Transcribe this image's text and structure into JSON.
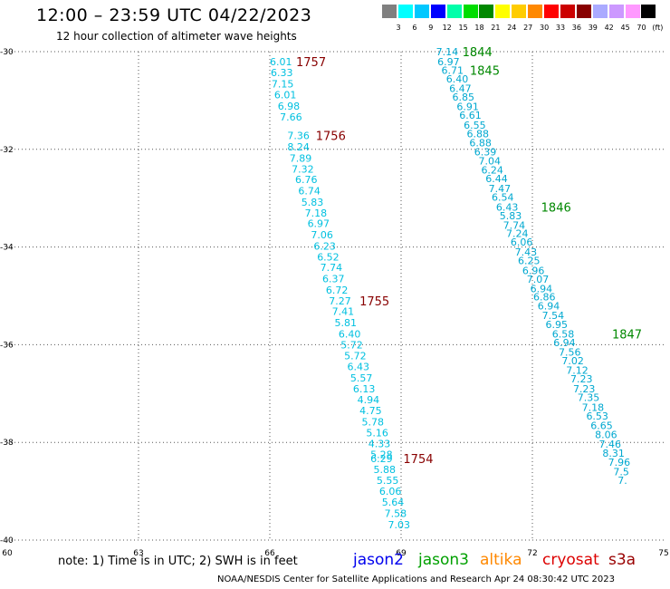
{
  "title": "12:00 – 23:59 UTC 04/22/2023",
  "subtitle": "12 hour collection of altimeter wave heights",
  "colorbar": {
    "colors": [
      "#808080",
      "#00ffff",
      "#00c8ff",
      "#0000ff",
      "#00ffaa",
      "#00dd00",
      "#008800",
      "#ffff00",
      "#ffcc00",
      "#ff8800",
      "#ff0000",
      "#cc0000",
      "#880000",
      "#aaaaff",
      "#cc99ff",
      "#ff99ff",
      "#000000"
    ],
    "labels": [
      "3",
      "6",
      "9",
      "12",
      "15",
      "18",
      "21",
      "24",
      "27",
      "30",
      "33",
      "36",
      "39",
      "42",
      "45",
      "70",
      "(ft)"
    ]
  },
  "note": "note:  1) Time is in UTC; 2) SWH is in feet",
  "legend": [
    {
      "name": "jason2",
      "color": "#0000ee"
    },
    {
      "name": "jason3",
      "color": "#00a000"
    },
    {
      "name": "altika",
      "color": "#ff8800"
    },
    {
      "name": "cryosat",
      "color": "#dd0000"
    },
    {
      "name": "s3a",
      "color": "#990000"
    }
  ],
  "footer": "NOAA/NESDIS Center for Satellite Applications and Research    Apr 24 08:30:42 UTC 2023",
  "chart_data": {
    "type": "scatter",
    "title": "12:00 – 23:59 UTC 04/22/2023",
    "xlim": [
      60,
      75
    ],
    "ylim": [
      -40,
      -30
    ],
    "x_ticks": [
      60,
      63,
      66,
      69,
      72,
      75
    ],
    "x_tick_labels": [
      "60",
      "63",
      "66",
      "69",
      "72",
      "75"
    ],
    "y_ticks": [
      -40,
      -38,
      -36,
      -34,
      -32,
      -30
    ],
    "y_tick_labels": [
      "-40",
      "-38",
      "-36",
      "-34",
      "-32",
      "-30"
    ],
    "grid": true,
    "series": [
      {
        "name": "jason2",
        "color": "#00c0e0",
        "points": [
          {
            "x": 66.0,
            "y": -30.2,
            "v": "6.01"
          },
          {
            "x": 66.02,
            "y": -30.43,
            "v": "6.33"
          },
          {
            "x": 66.04,
            "y": -30.66,
            "v": "7.15"
          },
          {
            "x": 66.1,
            "y": -30.88,
            "v": "6.01"
          },
          {
            "x": 66.18,
            "y": -31.11,
            "v": "6.98"
          },
          {
            "x": 66.23,
            "y": -31.34,
            "v": "7.66"
          },
          {
            "x": 66.4,
            "y": -31.72,
            "v": "7.36"
          },
          {
            "x": 66.4,
            "y": -31.95,
            "v": "8.24"
          },
          {
            "x": 66.45,
            "y": -32.18,
            "v": "7.89"
          },
          {
            "x": 66.5,
            "y": -32.4,
            "v": "7.32"
          },
          {
            "x": 66.58,
            "y": -32.62,
            "v": "6.76"
          },
          {
            "x": 66.65,
            "y": -32.85,
            "v": "6.74"
          },
          {
            "x": 66.72,
            "y": -33.08,
            "v": "5.83"
          },
          {
            "x": 66.8,
            "y": -33.3,
            "v": "7.18"
          },
          {
            "x": 66.86,
            "y": -33.52,
            "v": "6.97"
          },
          {
            "x": 66.94,
            "y": -33.75,
            "v": "7.06"
          },
          {
            "x": 67.0,
            "y": -33.98,
            "v": "6.23"
          },
          {
            "x": 67.08,
            "y": -34.2,
            "v": "6.52"
          },
          {
            "x": 67.15,
            "y": -34.42,
            "v": "7.74"
          },
          {
            "x": 67.2,
            "y": -34.65,
            "v": "6.37"
          },
          {
            "x": 67.28,
            "y": -34.88,
            "v": "6.72"
          },
          {
            "x": 67.35,
            "y": -35.1,
            "v": "7.27"
          },
          {
            "x": 67.42,
            "y": -35.32,
            "v": "7.41"
          },
          {
            "x": 67.48,
            "y": -35.55,
            "v": "5.81"
          },
          {
            "x": 67.57,
            "y": -35.78,
            "v": "6.40"
          },
          {
            "x": 67.62,
            "y": -36.0,
            "v": "5.72"
          },
          {
            "x": 67.7,
            "y": -36.22,
            "v": "5.72"
          },
          {
            "x": 67.77,
            "y": -36.45,
            "v": "6.43"
          },
          {
            "x": 67.84,
            "y": -36.68,
            "v": "5.57"
          },
          {
            "x": 67.9,
            "y": -36.9,
            "v": "6.13"
          },
          {
            "x": 68.0,
            "y": -37.12,
            "v": "4.94"
          },
          {
            "x": 68.05,
            "y": -37.35,
            "v": "4.75"
          },
          {
            "x": 68.1,
            "y": -37.58,
            "v": "5.78"
          },
          {
            "x": 68.2,
            "y": -37.8,
            "v": "5.16"
          },
          {
            "x": 68.25,
            "y": -38.02,
            "v": "4.33"
          },
          {
            "x": 68.3,
            "y": -38.25,
            "v": "5.28"
          },
          {
            "x": 68.3,
            "y": -38.33,
            "v": "6.29"
          },
          {
            "x": 68.37,
            "y": -38.55,
            "v": "5.88"
          },
          {
            "x": 68.44,
            "y": -38.78,
            "v": "5.55"
          },
          {
            "x": 68.5,
            "y": -39.0,
            "v": "6.06"
          },
          {
            "x": 68.56,
            "y": -39.22,
            "v": "5.64"
          },
          {
            "x": 68.62,
            "y": -39.45,
            "v": "7.58"
          },
          {
            "x": 68.7,
            "y": -39.68,
            "v": "7.03"
          }
        ]
      },
      {
        "name": "jason3",
        "color": "#00a8d0",
        "points": [
          {
            "x": 69.8,
            "y": -30.0,
            "v": "7.14"
          },
          {
            "x": 69.83,
            "y": -30.2,
            "v": "6.97"
          },
          {
            "x": 69.92,
            "y": -30.38,
            "v": "6.71"
          },
          {
            "x": 70.03,
            "y": -30.56,
            "v": "6.40"
          },
          {
            "x": 70.1,
            "y": -30.75,
            "v": "6.47"
          },
          {
            "x": 70.17,
            "y": -30.93,
            "v": "6.85"
          },
          {
            "x": 70.27,
            "y": -31.12,
            "v": "6.91"
          },
          {
            "x": 70.33,
            "y": -31.3,
            "v": "6.61"
          },
          {
            "x": 70.43,
            "y": -31.5,
            "v": "6.55"
          },
          {
            "x": 70.5,
            "y": -31.68,
            "v": "6.88"
          },
          {
            "x": 70.56,
            "y": -31.86,
            "v": "6.88"
          },
          {
            "x": 70.67,
            "y": -32.05,
            "v": "6.39"
          },
          {
            "x": 70.77,
            "y": -32.24,
            "v": "7.04"
          },
          {
            "x": 70.83,
            "y": -32.42,
            "v": "6.24"
          },
          {
            "x": 70.93,
            "y": -32.6,
            "v": "6.44"
          },
          {
            "x": 71.0,
            "y": -32.8,
            "v": "7.47"
          },
          {
            "x": 71.07,
            "y": -32.98,
            "v": "6.54"
          },
          {
            "x": 71.17,
            "y": -33.18,
            "v": "6.43"
          },
          {
            "x": 71.25,
            "y": -33.36,
            "v": "5.83"
          },
          {
            "x": 71.33,
            "y": -33.55,
            "v": "7.74"
          },
          {
            "x": 71.4,
            "y": -33.72,
            "v": "7.24"
          },
          {
            "x": 71.5,
            "y": -33.9,
            "v": "6.06"
          },
          {
            "x": 71.6,
            "y": -34.1,
            "v": "7.43"
          },
          {
            "x": 71.67,
            "y": -34.28,
            "v": "6.25"
          },
          {
            "x": 71.77,
            "y": -34.48,
            "v": "6.96"
          },
          {
            "x": 71.87,
            "y": -34.66,
            "v": "7.07"
          },
          {
            "x": 71.95,
            "y": -34.85,
            "v": "6.94"
          },
          {
            "x": 72.02,
            "y": -35.02,
            "v": "6.86"
          },
          {
            "x": 72.12,
            "y": -35.2,
            "v": "6.94"
          },
          {
            "x": 72.22,
            "y": -35.4,
            "v": "7.54"
          },
          {
            "x": 72.3,
            "y": -35.58,
            "v": "6.95"
          },
          {
            "x": 72.45,
            "y": -35.78,
            "v": "6.58"
          },
          {
            "x": 72.48,
            "y": -35.96,
            "v": "6.94"
          },
          {
            "x": 72.6,
            "y": -36.15,
            "v": "7.56"
          },
          {
            "x": 72.67,
            "y": -36.33,
            "v": "7.02"
          },
          {
            "x": 72.77,
            "y": -36.52,
            "v": "7.12"
          },
          {
            "x": 72.87,
            "y": -36.7,
            "v": "7.23"
          },
          {
            "x": 72.93,
            "y": -36.9,
            "v": "7.23"
          },
          {
            "x": 73.03,
            "y": -37.08,
            "v": "7.35"
          },
          {
            "x": 73.13,
            "y": -37.28,
            "v": "7.18"
          },
          {
            "x": 73.23,
            "y": -37.46,
            "v": "6.53"
          },
          {
            "x": 73.33,
            "y": -37.65,
            "v": "6.65"
          },
          {
            "x": 73.43,
            "y": -37.84,
            "v": "8.06"
          },
          {
            "x": 73.52,
            "y": -38.03,
            "v": "7.46"
          },
          {
            "x": 73.6,
            "y": -38.22,
            "v": "8.31"
          },
          {
            "x": 73.73,
            "y": -38.4,
            "v": "7.96"
          },
          {
            "x": 73.85,
            "y": -38.6,
            "v": "7.5"
          },
          {
            "x": 73.95,
            "y": -38.78,
            "v": "7."
          }
        ]
      }
    ],
    "annotations": [
      {
        "text": "1757",
        "x": 66.6,
        "y": -30.2,
        "color": "#880000"
      },
      {
        "text": "1756",
        "x": 67.05,
        "y": -31.72,
        "color": "#880000"
      },
      {
        "text": "1755",
        "x": 68.05,
        "y": -35.1,
        "color": "#880000"
      },
      {
        "text": "1754",
        "x": 69.05,
        "y": -38.33,
        "color": "#880000"
      },
      {
        "text": "1844",
        "x": 70.4,
        "y": -30.0,
        "color": "#008800"
      },
      {
        "text": "1845",
        "x": 70.57,
        "y": -30.38,
        "color": "#008800"
      },
      {
        "text": "1846",
        "x": 72.2,
        "y": -33.18,
        "color": "#008800"
      },
      {
        "text": "1847",
        "x": 73.82,
        "y": -35.78,
        "color": "#008800"
      }
    ]
  }
}
